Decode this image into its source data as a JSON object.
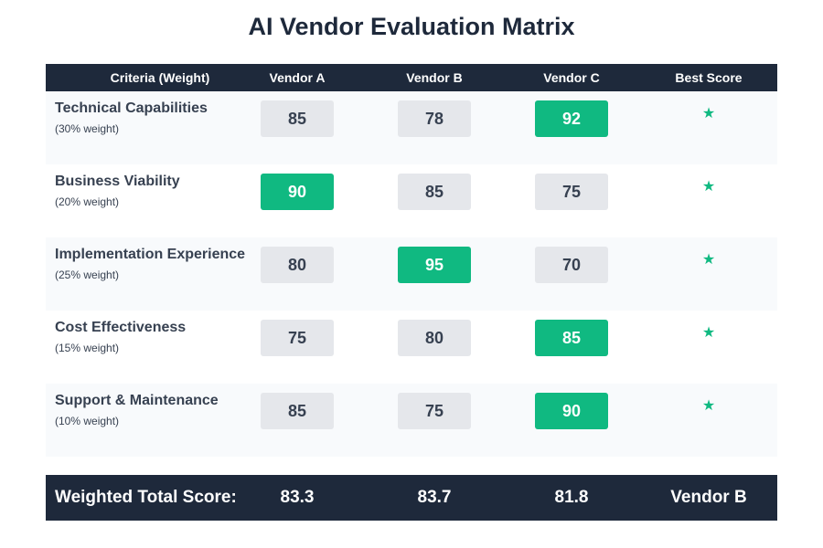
{
  "title": "AI Vendor Evaluation Matrix",
  "headers": {
    "criteria": "Criteria (Weight)",
    "vendor_a": "Vendor A",
    "vendor_b": "Vendor B",
    "vendor_c": "Vendor C",
    "best": "Best Score"
  },
  "colors": {
    "header_bg": "#1e293b",
    "best_highlight": "#10b981",
    "normal_box": "#e5e7eb",
    "row_alt": "#f8fafc"
  },
  "best_marker_icon": "star-icon",
  "best_marker_glyph": "★",
  "chart_data": {
    "type": "table",
    "title": "AI Vendor Evaluation Matrix",
    "columns": [
      "Vendor A",
      "Vendor B",
      "Vendor C"
    ],
    "rows": [
      {
        "criterion": "Technical Capabilities",
        "weight_label": "(30% weight)",
        "weight": 30,
        "scores": [
          85,
          78,
          92
        ],
        "best_index": 2
      },
      {
        "criterion": "Business Viability",
        "weight_label": "(20% weight)",
        "weight": 20,
        "scores": [
          90,
          85,
          75
        ],
        "best_index": 0
      },
      {
        "criterion": "Implementation Experience",
        "weight_label": "(25% weight)",
        "weight": 25,
        "scores": [
          80,
          95,
          70
        ],
        "best_index": 1
      },
      {
        "criterion": "Cost Effectiveness",
        "weight_label": "(15% weight)",
        "weight": 15,
        "scores": [
          75,
          80,
          85
        ],
        "best_index": 2
      },
      {
        "criterion": "Support & Maintenance",
        "weight_label": "(10% weight)",
        "weight": 10,
        "scores": [
          85,
          75,
          90
        ],
        "best_index": 2
      }
    ],
    "totals": {
      "label": "Weighted Total Score:",
      "values": [
        "83.3",
        "83.7",
        "81.8"
      ],
      "winner": "Vendor B"
    }
  }
}
